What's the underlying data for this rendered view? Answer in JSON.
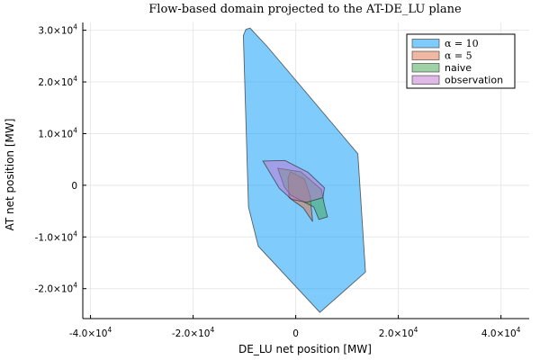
{
  "chart_data": {
    "type": "area",
    "title": "Flow-based domain projected to the AT-DE_LU plane",
    "xlabel": "DE_LU net position [MW]",
    "ylabel": "AT net position [MW]",
    "xlim": [
      -41500,
      45500
    ],
    "ylim": [
      -25800,
      31500
    ],
    "x_ticks": [
      {
        "value": -40000,
        "mantissa": "-4.0×10",
        "exp": "4"
      },
      {
        "value": -20000,
        "mantissa": "-2.0×10",
        "exp": "4"
      },
      {
        "value": 0,
        "mantissa": "0",
        "exp": ""
      },
      {
        "value": 20000,
        "mantissa": "2.0×10",
        "exp": "4"
      },
      {
        "value": 40000,
        "mantissa": "4.0×10",
        "exp": "4"
      }
    ],
    "y_ticks": [
      {
        "value": -20000,
        "mantissa": "-2.0×10",
        "exp": "4"
      },
      {
        "value": -10000,
        "mantissa": "-1.0×10",
        "exp": "4"
      },
      {
        "value": 0,
        "mantissa": "0",
        "exp": ""
      },
      {
        "value": 10000,
        "mantissa": "1.0×10",
        "exp": "4"
      },
      {
        "value": 20000,
        "mantissa": "2.0×10",
        "exp": "4"
      },
      {
        "value": 30000,
        "mantissa": "3.0×10",
        "exp": "4"
      }
    ],
    "grid": true,
    "legend_position": "top-right",
    "series": [
      {
        "name": "α = 10",
        "legend_math": true,
        "color": "#009af9",
        "points": [
          [
            -9700,
            30200
          ],
          [
            -8900,
            30400
          ],
          [
            -5500,
            26800
          ],
          [
            12100,
            6100
          ],
          [
            13600,
            -16800
          ],
          [
            4700,
            -24600
          ],
          [
            -7300,
            -11800
          ],
          [
            -9200,
            -4200
          ],
          [
            -10200,
            29000
          ]
        ]
      },
      {
        "name": "α = 5",
        "legend_math": true,
        "color": "#e26f46",
        "points": [
          [
            -1000,
            2600
          ],
          [
            1700,
            1200
          ],
          [
            2800,
            -2100
          ],
          [
            3300,
            -7000
          ],
          [
            1500,
            -4400
          ],
          [
            -1300,
            -2400
          ],
          [
            -1500,
            1400
          ]
        ]
      },
      {
        "name": "naive",
        "legend_math": false,
        "color": "#3da44d",
        "points": [
          [
            -3500,
            3300
          ],
          [
            1000,
            2600
          ],
          [
            5000,
            -800
          ],
          [
            5600,
            -3800
          ],
          [
            6200,
            -6100
          ],
          [
            4500,
            -6600
          ],
          [
            3500,
            -4200
          ],
          [
            -1000,
            -1900
          ],
          [
            -2200,
            -400
          ]
        ]
      },
      {
        "name": "observation",
        "legend_math": false,
        "color": "#c271d2",
        "points": [
          [
            -6400,
            4700
          ],
          [
            -2100,
            4800
          ],
          [
            2400,
            2500
          ],
          [
            5600,
            -500
          ],
          [
            5300,
            -2400
          ],
          [
            2100,
            -3300
          ],
          [
            -800,
            -2700
          ],
          [
            -3200,
            -600
          ]
        ]
      }
    ]
  }
}
